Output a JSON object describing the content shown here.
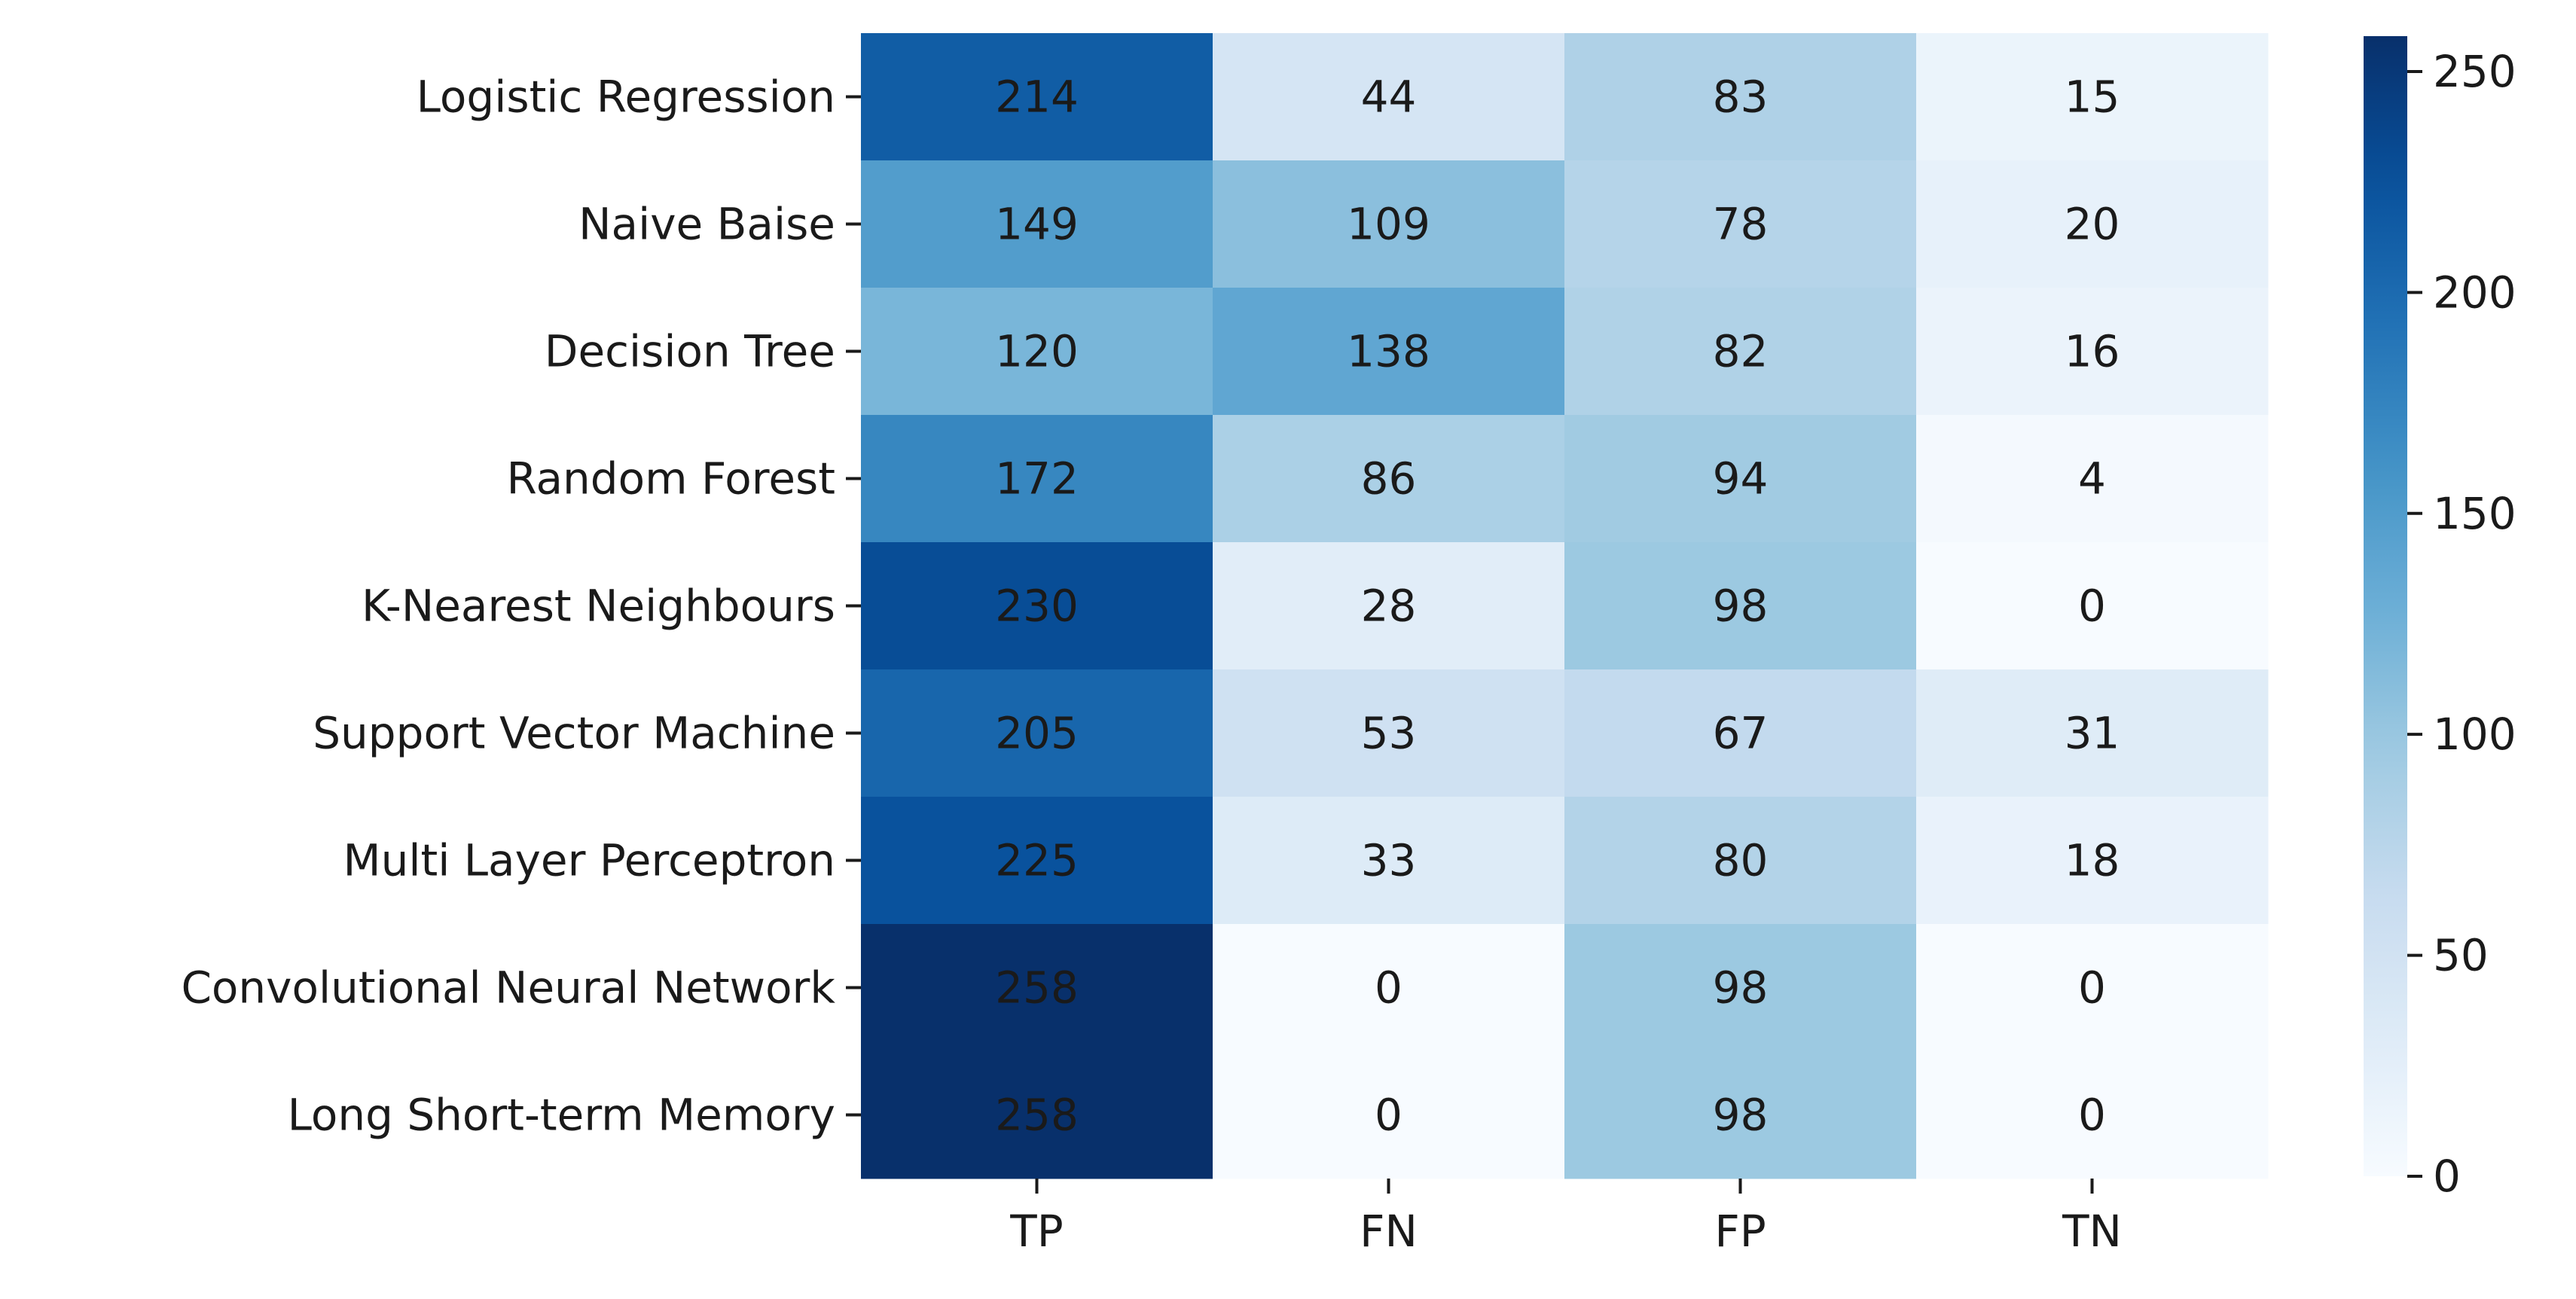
{
  "chart_data": {
    "type": "heatmap",
    "title": "",
    "xlabel": "",
    "ylabel": "",
    "columns": [
      "TP",
      "FN",
      "FP",
      "TN"
    ],
    "rows": [
      "Logistic Regression",
      "Naive Baise",
      "Decision Tree",
      "Random Forest",
      "K-Nearest Neighbours",
      "Support Vector Machine",
      "Multi Layer Perceptron",
      "Convolutional Neural Network",
      "Long Short-term Memory"
    ],
    "values": [
      [
        214,
        44,
        83,
        15
      ],
      [
        149,
        109,
        78,
        20
      ],
      [
        120,
        138,
        82,
        16
      ],
      [
        172,
        86,
        94,
        4
      ],
      [
        230,
        28,
        98,
        0
      ],
      [
        205,
        53,
        67,
        31
      ],
      [
        225,
        33,
        80,
        18
      ],
      [
        258,
        0,
        98,
        0
      ],
      [
        258,
        0,
        98,
        0
      ]
    ],
    "colormap": "Blues",
    "colorbar": {
      "min": 0,
      "max": 258,
      "ticks": [
        0,
        50,
        100,
        150,
        200,
        250
      ]
    },
    "grid": false,
    "legend": "colorbar right"
  }
}
